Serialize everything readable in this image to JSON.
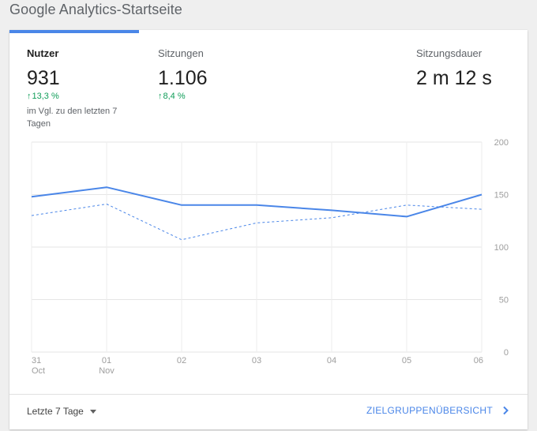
{
  "page_title": "Google Analytics-Startseite",
  "metrics": [
    {
      "label": "Nutzer",
      "value": "931",
      "change": "13,3 %",
      "compare": "im Vgl. zu den letzten 7 Tagen"
    },
    {
      "label": "Sitzungen",
      "value": "1.106",
      "change": "8,4 %"
    },
    {
      "label": "Sitzungsdauer",
      "value": "2 m 12 s"
    }
  ],
  "icons": {
    "change_up": "arrow-up-icon",
    "dropdown": "caret-down-icon",
    "link": "chevron-right-icon"
  },
  "colors": {
    "accent": "#4a86e8",
    "positive": "#0f9d58"
  },
  "chart_data": {
    "type": "line",
    "x_labels": [
      {
        "day": "31",
        "month": "Oct"
      },
      {
        "day": "01",
        "month": "Nov"
      },
      {
        "day": "02",
        "month": ""
      },
      {
        "day": "03",
        "month": ""
      },
      {
        "day": "04",
        "month": ""
      },
      {
        "day": "05",
        "month": ""
      },
      {
        "day": "06",
        "month": ""
      }
    ],
    "y_ticks": [
      "200",
      "150",
      "100",
      "50",
      "0"
    ],
    "ylim": [
      0,
      200
    ],
    "grid": true,
    "series": [
      {
        "style": "solid",
        "values": [
          148,
          157,
          140,
          140,
          135,
          129,
          150
        ]
      },
      {
        "style": "dashed",
        "values": [
          130,
          141,
          107,
          123,
          128,
          140,
          136
        ]
      }
    ]
  },
  "footer": {
    "range_label": "Letzte 7 Tage",
    "audience_link": "ZIELGRUPPENÜBERSICHT"
  }
}
